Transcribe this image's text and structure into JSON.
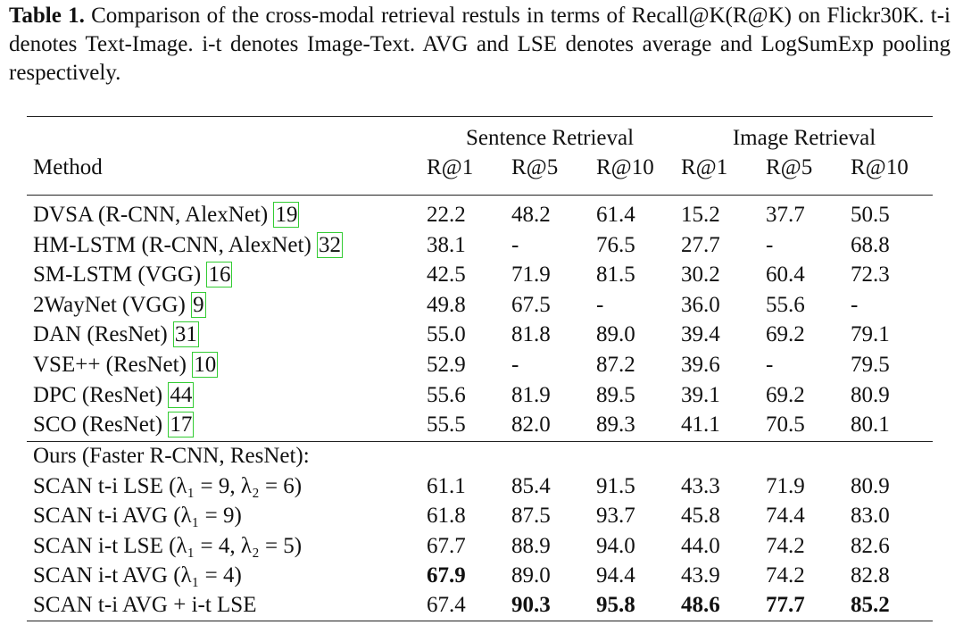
{
  "caption": {
    "label": "Table 1.",
    "text": "Comparison of the cross-modal retrieval restuls in terms of Recall@K(R@K) on Flickr30K. t-i denotes Text-Image. i-t denotes Image-Text. AVG and LSE denotes average and LogSumExp pooling respectively."
  },
  "table": {
    "group_headers": [
      "Sentence Retrieval",
      "Image Retrieval"
    ],
    "columns": [
      "Method",
      "R@1",
      "R@5",
      "R@10",
      "R@1",
      "R@5",
      "R@10"
    ],
    "rows": [
      {
        "method": "DVSA (R-CNN, AlexNet)",
        "citation": "19",
        "values": [
          "22.2",
          "48.2",
          "61.4",
          "15.2",
          "37.7",
          "50.5"
        ]
      },
      {
        "method": "HM-LSTM (R-CNN, AlexNet)",
        "citation": "32",
        "values": [
          "38.1",
          "-",
          "76.5",
          "27.7",
          "-",
          "68.8"
        ]
      },
      {
        "method": "SM-LSTM (VGG)",
        "citation": "16",
        "values": [
          "42.5",
          "71.9",
          "81.5",
          "30.2",
          "60.4",
          "72.3"
        ]
      },
      {
        "method": "2WayNet (VGG)",
        "citation": "9",
        "values": [
          "49.8",
          "67.5",
          "-",
          "36.0",
          "55.6",
          "-"
        ]
      },
      {
        "method": "DAN (ResNet)",
        "citation": "31",
        "values": [
          "55.0",
          "81.8",
          "89.0",
          "39.4",
          "69.2",
          "79.1"
        ]
      },
      {
        "method": "VSE++ (ResNet)",
        "citation": "10",
        "values": [
          "52.9",
          "-",
          "87.2",
          "39.6",
          "-",
          "79.5"
        ]
      },
      {
        "method": "DPC (ResNet)",
        "citation": "44",
        "values": [
          "55.6",
          "81.9",
          "89.5",
          "39.1",
          "69.2",
          "80.9"
        ]
      },
      {
        "method": "SCO (ResNet)",
        "citation": "17",
        "values": [
          "55.5",
          "82.0",
          "89.3",
          "41.1",
          "70.5",
          "80.1"
        ]
      }
    ],
    "section": "Ours (Faster R-CNN, ResNet):",
    "ours_rows": [
      {
        "method": "SCAN t-i LSE (λ₁ = 9, λ₂ = 6)",
        "values": [
          "61.1",
          "85.4",
          "91.5",
          "43.3",
          "71.9",
          "80.9"
        ]
      },
      {
        "method": "SCAN t-i AVG (λ₁ = 9)",
        "values": [
          "61.8",
          "87.5",
          "93.7",
          "45.8",
          "74.4",
          "83.0"
        ]
      },
      {
        "method": "SCAN i-t LSE (λ₁ = 4, λ₂ = 5)",
        "values": [
          "67.7",
          "88.9",
          "94.0",
          "44.0",
          "74.2",
          "82.6"
        ]
      },
      {
        "method": "SCAN i-t AVG (λ₁ = 4)",
        "values": [
          "67.9",
          "89.0",
          "94.4",
          "43.9",
          "74.2",
          "82.8"
        ]
      },
      {
        "method": "SCAN t-i AVG + i-t LSE",
        "values": [
          "67.4",
          "90.3",
          "95.8",
          "48.6",
          "77.7",
          "85.2"
        ]
      }
    ]
  }
}
